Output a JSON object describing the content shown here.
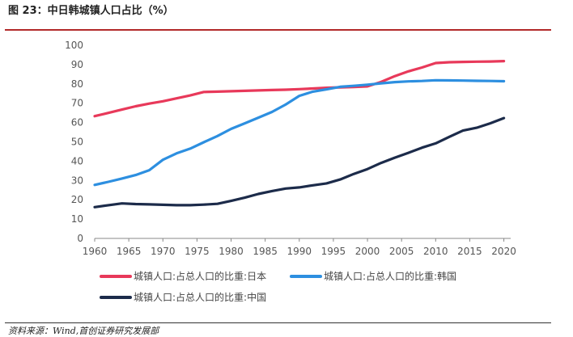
{
  "header": {
    "title": "图 23：中日韩城镇人口占比（%）"
  },
  "footer": {
    "source": "资料来源：Wind,首创证券研究发展部"
  },
  "chart_data": {
    "type": "line",
    "title": "图 23：中日韩城镇人口占比（%）",
    "xlabel": "",
    "ylabel": "",
    "xlim": [
      1960,
      2021
    ],
    "ylim": [
      0,
      100
    ],
    "x_ticks": [
      1960,
      1965,
      1970,
      1975,
      1980,
      1985,
      1990,
      1995,
      2000,
      2005,
      2010,
      2015,
      2020
    ],
    "y_ticks": [
      0,
      10,
      20,
      30,
      40,
      50,
      60,
      70,
      80,
      90,
      100
    ],
    "grid": false,
    "legend_position": "bottom",
    "x": [
      1960,
      1962,
      1964,
      1966,
      1968,
      1970,
      1972,
      1974,
      1976,
      1978,
      1980,
      1982,
      1984,
      1986,
      1988,
      1990,
      1992,
      1994,
      1996,
      1998,
      2000,
      2002,
      2004,
      2006,
      2008,
      2010,
      2012,
      2014,
      2016,
      2018,
      2020
    ],
    "series": [
      {
        "name": "城镇人口:占总人口的比重:日本",
        "color": "#e8395a",
        "values": [
          63.3,
          65.0,
          66.7,
          68.4,
          69.8,
          71.0,
          72.5,
          74.0,
          75.8,
          76.0,
          76.2,
          76.4,
          76.6,
          76.8,
          77.0,
          77.3,
          77.6,
          78.0,
          78.2,
          78.4,
          78.7,
          81.0,
          84.0,
          86.5,
          88.5,
          90.8,
          91.2,
          91.4,
          91.5,
          91.6,
          91.8
        ]
      },
      {
        "name": "城镇人口:占总人口的比重:韩国",
        "color": "#2d8fe0",
        "values": [
          27.7,
          29.3,
          31.0,
          32.8,
          35.3,
          40.7,
          44.0,
          46.5,
          49.8,
          53.0,
          56.7,
          59.6,
          62.5,
          65.5,
          69.3,
          73.8,
          76.0,
          77.2,
          78.5,
          79.0,
          79.6,
          80.3,
          80.9,
          81.3,
          81.5,
          81.9,
          81.8,
          81.7,
          81.6,
          81.5,
          81.4
        ]
      },
      {
        "name": "城镇人口:占总人口的比重:中国",
        "color": "#1c2b4a",
        "values": [
          16.2,
          17.2,
          18.1,
          17.8,
          17.6,
          17.4,
          17.2,
          17.2,
          17.5,
          17.9,
          19.4,
          21.1,
          23.0,
          24.5,
          25.8,
          26.4,
          27.5,
          28.5,
          30.5,
          33.4,
          35.9,
          39.1,
          41.8,
          44.3,
          47.0,
          49.2,
          52.6,
          55.8,
          57.3,
          59.6,
          62.3
        ]
      }
    ]
  }
}
